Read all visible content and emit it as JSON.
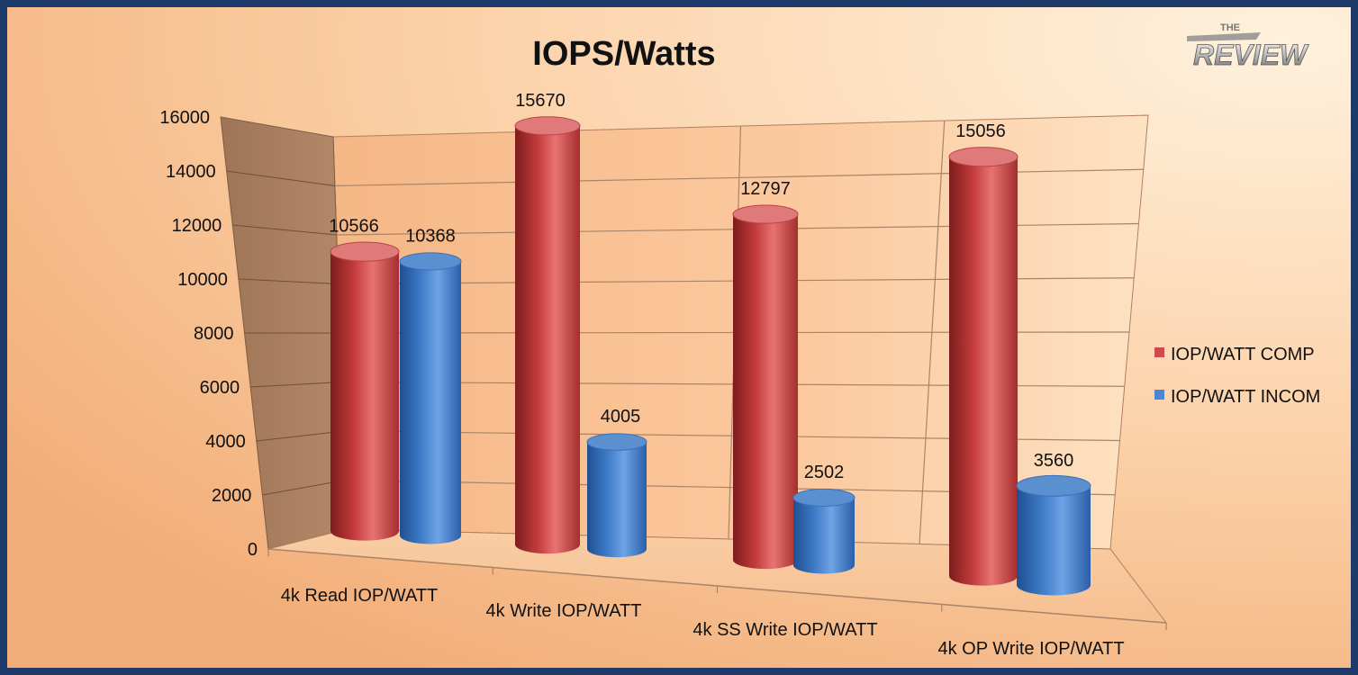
{
  "chart_data": {
    "type": "bar",
    "title": "IOPS/Watts",
    "categories": [
      "4k Read IOP/WATT",
      "4k Write IOP/WATT",
      "4k SS Write IOP/WATT",
      "4k OP Write IOP/WATT"
    ],
    "series": [
      {
        "name": "IOP/WATT COMP",
        "color": "#cf4a4a",
        "values": [
          10566,
          15670,
          12797,
          15056
        ]
      },
      {
        "name": "IOP/WATT INCOM",
        "color": "#4a86d4",
        "values": [
          10368,
          4005,
          2502,
          3560
        ]
      }
    ],
    "ylim": [
      0,
      16000
    ],
    "yticks": [
      "0",
      "2000",
      "4000",
      "6000",
      "8000",
      "10000",
      "12000",
      "14000",
      "16000"
    ],
    "grid": true,
    "legend": "right",
    "data_labels": true
  },
  "logo": {
    "top": "THE",
    "main": "REVIEW"
  }
}
